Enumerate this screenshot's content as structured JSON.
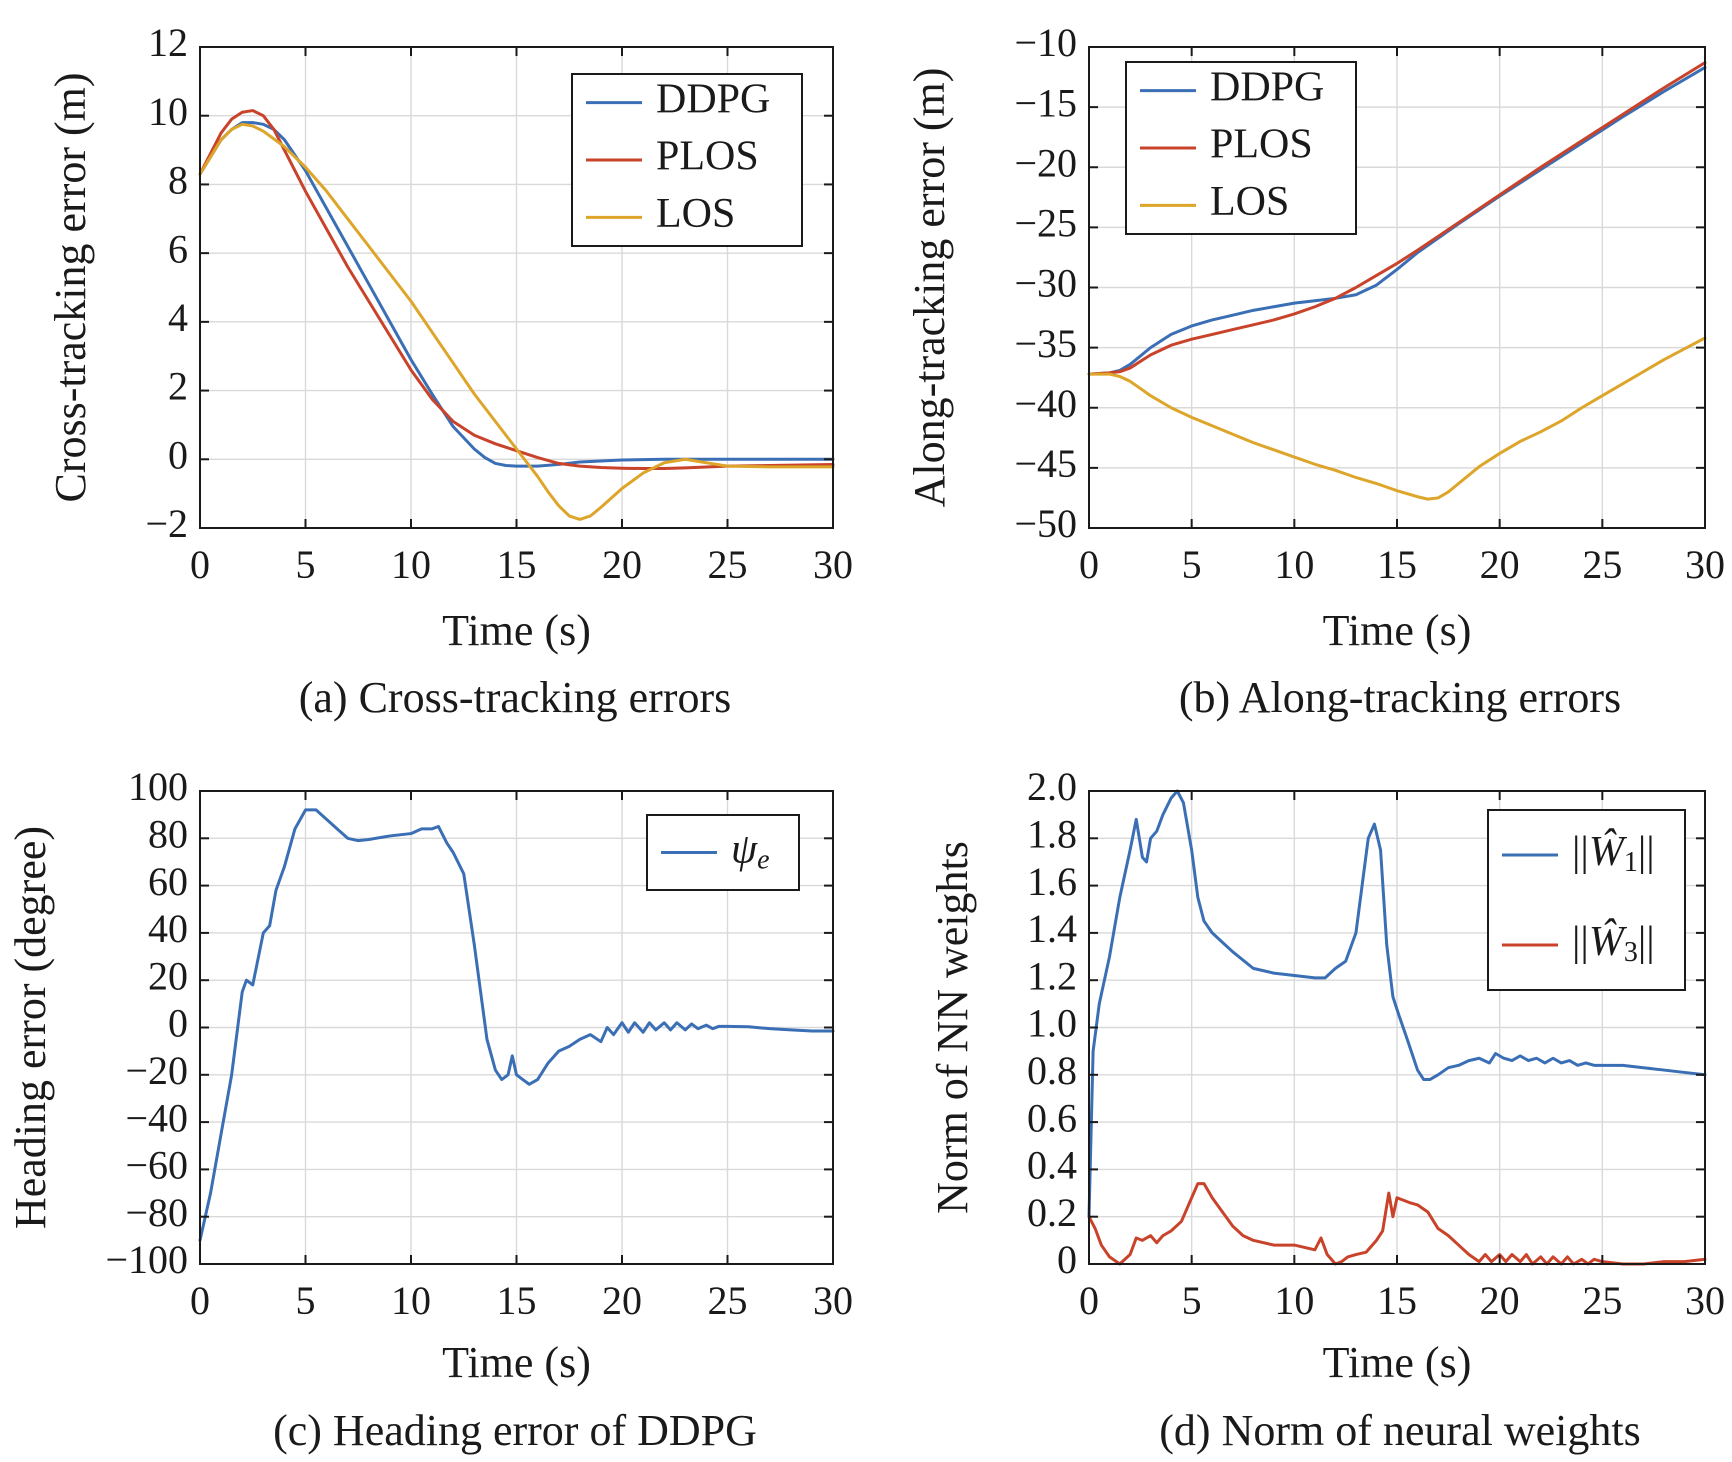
{
  "colors": {
    "blue": "#3a6fb5",
    "red": "#c9432b",
    "yellow": "#dda52a",
    "grid": "#d9d9d9",
    "axis": "#1a1a1a"
  },
  "chart_data": [
    {
      "id": "a",
      "type": "line",
      "caption": "(a) Cross-tracking errors",
      "xlabel": "Time (s)",
      "ylabel": "Cross-tracking error (m)",
      "xlim": [
        0,
        30
      ],
      "ylim": [
        -2,
        12
      ],
      "xticks": [
        0,
        5,
        10,
        15,
        20,
        25,
        30
      ],
      "xtick_labels": [
        "0",
        "5",
        "10",
        "15",
        "20",
        "25",
        "30"
      ],
      "yticks": [
        -2,
        0,
        2,
        4,
        6,
        8,
        10,
        12
      ],
      "ytick_labels": [
        "−2",
        "0",
        "2",
        "4",
        "6",
        "8",
        "10",
        "12"
      ],
      "grid": true,
      "legend_position": "top-right",
      "series": [
        {
          "name": "DDPG",
          "color": "#3a6fb5",
          "x": [
            0,
            0.5,
            1,
            1.5,
            2,
            2.5,
            3,
            3.5,
            4,
            5,
            6,
            7,
            8,
            9,
            10,
            11,
            12,
            13,
            13.5,
            14,
            14.5,
            15,
            16,
            17,
            18,
            20,
            22,
            25,
            30
          ],
          "y": [
            8.3,
            8.8,
            9.3,
            9.6,
            9.8,
            9.8,
            9.75,
            9.6,
            9.3,
            8.4,
            7.3,
            6.2,
            5.1,
            4.0,
            2.9,
            1.9,
            0.95,
            0.3,
            0.05,
            -0.12,
            -0.18,
            -0.2,
            -0.2,
            -0.15,
            -0.08,
            -0.02,
            0.0,
            0.0,
            0.0
          ]
        },
        {
          "name": "PLOS",
          "color": "#c9432b",
          "x": [
            0,
            0.5,
            1,
            1.5,
            2,
            2.5,
            3,
            3.5,
            4,
            5,
            6,
            7,
            8,
            9,
            10,
            11,
            12,
            13,
            14,
            15,
            16,
            17,
            18,
            19,
            20,
            21,
            22,
            23,
            25,
            27,
            30
          ],
          "y": [
            8.3,
            8.9,
            9.5,
            9.9,
            10.1,
            10.15,
            10.0,
            9.6,
            9.0,
            7.8,
            6.7,
            5.6,
            4.6,
            3.6,
            2.6,
            1.75,
            1.1,
            0.7,
            0.45,
            0.25,
            0.05,
            -0.12,
            -0.2,
            -0.24,
            -0.26,
            -0.27,
            -0.27,
            -0.25,
            -0.2,
            -0.18,
            -0.15
          ]
        },
        {
          "name": "LOS",
          "color": "#dda52a",
          "x": [
            0,
            0.5,
            1,
            1.5,
            2,
            2.5,
            3,
            4,
            5,
            6,
            7,
            8,
            9,
            10,
            11,
            12,
            13,
            14,
            15,
            16,
            16.5,
            17,
            17.5,
            18,
            18.5,
            19,
            20,
            21,
            22,
            23,
            24,
            25,
            27,
            30
          ],
          "y": [
            8.3,
            8.8,
            9.3,
            9.6,
            9.75,
            9.7,
            9.55,
            9.1,
            8.5,
            7.8,
            7.0,
            6.2,
            5.4,
            4.6,
            3.7,
            2.8,
            1.9,
            1.1,
            0.3,
            -0.5,
            -0.95,
            -1.35,
            -1.65,
            -1.75,
            -1.65,
            -1.4,
            -0.85,
            -0.4,
            -0.1,
            0.0,
            -0.1,
            -0.2,
            -0.22,
            -0.22
          ]
        }
      ]
    },
    {
      "id": "b",
      "type": "line",
      "caption": "(b) Along-tracking errors",
      "xlabel": "Time (s)",
      "ylabel": "Along-tracking error (m)",
      "xlim": [
        0,
        30
      ],
      "ylim": [
        -50,
        -10
      ],
      "xticks": [
        0,
        5,
        10,
        15,
        20,
        25,
        30
      ],
      "xtick_labels": [
        "0",
        "5",
        "10",
        "15",
        "20",
        "25",
        "30"
      ],
      "yticks": [
        -50,
        -45,
        -40,
        -35,
        -30,
        -25,
        -20,
        -15,
        -10
      ],
      "ytick_labels": [
        "−50",
        "−45",
        "−40",
        "−35",
        "−30",
        "−25",
        "−20",
        "−15",
        "−10"
      ],
      "grid": true,
      "legend_position": "top-left",
      "series": [
        {
          "name": "DDPG",
          "color": "#3a6fb5",
          "x": [
            0,
            1,
            1.5,
            2,
            3,
            4,
            5,
            6,
            7,
            8,
            9,
            10,
            11,
            12,
            13,
            14,
            15,
            16,
            18,
            20,
            22,
            24,
            26,
            28,
            30
          ],
          "y": [
            -37.2,
            -37.1,
            -36.9,
            -36.4,
            -35.0,
            -33.9,
            -33.2,
            -32.7,
            -32.3,
            -31.9,
            -31.6,
            -31.3,
            -31.1,
            -30.9,
            -30.6,
            -29.8,
            -28.5,
            -27.1,
            -24.7,
            -22.4,
            -20.2,
            -18.0,
            -15.8,
            -13.7,
            -11.7
          ]
        },
        {
          "name": "PLOS",
          "color": "#c9432b",
          "x": [
            0,
            1,
            1.5,
            2,
            3,
            4,
            5,
            6,
            7,
            8,
            9,
            10,
            11,
            12,
            13,
            14,
            15,
            16,
            18,
            20,
            22,
            24,
            26,
            28,
            30
          ],
          "y": [
            -37.2,
            -37.1,
            -37.0,
            -36.7,
            -35.6,
            -34.8,
            -34.3,
            -33.9,
            -33.5,
            -33.1,
            -32.7,
            -32.2,
            -31.6,
            -30.9,
            -30.0,
            -29.0,
            -28.0,
            -26.9,
            -24.6,
            -22.3,
            -20.0,
            -17.8,
            -15.6,
            -13.4,
            -11.3
          ]
        },
        {
          "name": "LOS",
          "color": "#dda52a",
          "x": [
            0,
            1,
            1.5,
            2,
            3,
            4,
            5,
            6,
            7,
            8,
            9,
            10,
            11,
            12,
            13,
            14,
            15,
            16,
            16.5,
            17,
            17.5,
            18,
            19,
            20,
            21,
            22,
            23,
            24,
            25,
            26,
            27,
            28,
            29,
            30
          ],
          "y": [
            -37.2,
            -37.2,
            -37.4,
            -37.8,
            -39.0,
            -40.0,
            -40.8,
            -41.5,
            -42.2,
            -42.9,
            -43.5,
            -44.1,
            -44.7,
            -45.2,
            -45.8,
            -46.3,
            -46.9,
            -47.4,
            -47.6,
            -47.5,
            -47.0,
            -46.3,
            -44.9,
            -43.8,
            -42.8,
            -42.0,
            -41.1,
            -40.0,
            -39.0,
            -38.0,
            -37.0,
            -36.0,
            -35.1,
            -34.2
          ]
        }
      ]
    },
    {
      "id": "c",
      "type": "line",
      "caption": "(c) Heading error of DDPG",
      "xlabel": "Time (s)",
      "ylabel": "Heading error (degree)",
      "xlim": [
        0,
        30
      ],
      "ylim": [
        -100,
        100
      ],
      "xticks": [
        0,
        5,
        10,
        15,
        20,
        25,
        30
      ],
      "xtick_labels": [
        "0",
        "5",
        "10",
        "15",
        "20",
        "25",
        "30"
      ],
      "yticks": [
        -100,
        -80,
        -60,
        -40,
        -20,
        0,
        20,
        40,
        60,
        80,
        100
      ],
      "ytick_labels": [
        "−100",
        "−80",
        "−60",
        "−40",
        "−20",
        "0",
        "20",
        "40",
        "60",
        "80",
        "100"
      ],
      "grid": true,
      "legend_position": "top-right",
      "series": [
        {
          "name": "ψe",
          "color": "#3a6fb5",
          "x": [
            0,
            0.5,
            1,
            1.5,
            2,
            2.2,
            2.5,
            3,
            3.3,
            3.6,
            4,
            4.5,
            5,
            5.5,
            6,
            6.5,
            7,
            7.5,
            8,
            9,
            10,
            10.5,
            11,
            11.3,
            11.7,
            12,
            12.5,
            13,
            13.3,
            13.6,
            14,
            14.3,
            14.6,
            14.8,
            15,
            15.3,
            15.6,
            16,
            16.5,
            17,
            17.5,
            18,
            18.5,
            19,
            19.3,
            19.6,
            20,
            20.3,
            20.6,
            21,
            21.3,
            21.6,
            22,
            22.3,
            22.6,
            23,
            23.3,
            23.6,
            24,
            24.3,
            24.6,
            25,
            26,
            27,
            28,
            29,
            30
          ],
          "y": [
            -90,
            -70,
            -45,
            -20,
            15,
            20,
            18,
            40,
            43,
            58,
            68,
            84,
            92,
            92,
            88,
            84,
            80,
            79,
            79.5,
            81,
            82,
            84,
            84,
            85,
            78,
            74,
            65,
            35,
            15,
            -5,
            -18,
            -22,
            -20,
            -12,
            -20,
            -22,
            -24,
            -22,
            -15,
            -10,
            -8,
            -5,
            -3,
            -6,
            0,
            -3,
            2,
            -2,
            2,
            -2,
            2,
            -1,
            2,
            -1,
            2,
            -1,
            1.5,
            -0.5,
            1,
            -0.5,
            0.5,
            0.5,
            0.3,
            -0.5,
            -1,
            -1.5,
            -1.5
          ]
        }
      ]
    },
    {
      "id": "d",
      "type": "line",
      "caption": "(d) Norm of neural weights",
      "xlabel": "Time (s)",
      "ylabel": "Norm of NN weights",
      "xlim": [
        0,
        30
      ],
      "ylim": [
        0,
        2.0
      ],
      "xticks": [
        0,
        5,
        10,
        15,
        20,
        25,
        30
      ],
      "xtick_labels": [
        "0",
        "5",
        "10",
        "15",
        "20",
        "25",
        "30"
      ],
      "yticks": [
        0,
        0.2,
        0.4,
        0.6,
        0.8,
        1.0,
        1.2,
        1.4,
        1.6,
        1.8,
        2.0
      ],
      "ytick_labels": [
        "0",
        "0.2",
        "0.4",
        "0.6",
        "0.8",
        "1.0",
        "1.2",
        "1.4",
        "1.6",
        "1.8",
        "2.0"
      ],
      "grid": true,
      "legend_position": "top-right",
      "series": [
        {
          "name": "||Ŵ1||",
          "color": "#3a6fb5",
          "x": [
            0,
            0.2,
            0.5,
            1,
            1.5,
            2,
            2.3,
            2.6,
            2.8,
            3.0,
            3.3,
            3.6,
            4,
            4.3,
            4.6,
            5,
            5.3,
            5.6,
            6,
            6.5,
            7,
            8,
            9,
            10,
            11,
            11.5,
            12,
            12.5,
            13,
            13.3,
            13.6,
            13.9,
            14.2,
            14.5,
            14.8,
            15.1,
            15.5,
            16,
            16.3,
            16.6,
            17,
            17.5,
            18,
            18.5,
            19,
            19.5,
            19.8,
            20.2,
            20.6,
            21,
            21.4,
            21.8,
            22.2,
            22.6,
            23,
            23.4,
            23.8,
            24.2,
            24.6,
            25,
            26,
            27,
            28,
            29,
            30
          ],
          "y": [
            0.2,
            0.9,
            1.1,
            1.3,
            1.55,
            1.75,
            1.88,
            1.72,
            1.7,
            1.8,
            1.83,
            1.9,
            1.97,
            2.0,
            1.95,
            1.75,
            1.55,
            1.45,
            1.4,
            1.36,
            1.32,
            1.25,
            1.23,
            1.22,
            1.21,
            1.21,
            1.25,
            1.28,
            1.4,
            1.6,
            1.8,
            1.86,
            1.75,
            1.35,
            1.13,
            1.05,
            0.95,
            0.82,
            0.78,
            0.78,
            0.8,
            0.83,
            0.84,
            0.86,
            0.87,
            0.85,
            0.89,
            0.87,
            0.86,
            0.88,
            0.86,
            0.87,
            0.85,
            0.87,
            0.85,
            0.86,
            0.84,
            0.85,
            0.84,
            0.84,
            0.84,
            0.83,
            0.82,
            0.81,
            0.8
          ]
        },
        {
          "name": "||Ŵ3||",
          "color": "#c9432b",
          "x": [
            0,
            0.3,
            0.6,
            1,
            1.5,
            2,
            2.3,
            2.6,
            3,
            3.3,
            3.6,
            4,
            4.5,
            5,
            5.3,
            5.6,
            6,
            6.5,
            7,
            7.5,
            8,
            9,
            10,
            11,
            11.3,
            11.6,
            12,
            12.3,
            12.6,
            13,
            13.5,
            14,
            14.3,
            14.6,
            14.8,
            15.0,
            15.3,
            15.6,
            16,
            16.5,
            17,
            17.5,
            18,
            18.5,
            19,
            19.3,
            19.6,
            20,
            20.3,
            20.6,
            21,
            21.3,
            21.6,
            22,
            22.3,
            22.6,
            23,
            23.3,
            23.6,
            24,
            24.3,
            24.6,
            25,
            26,
            27,
            28,
            29,
            30
          ],
          "y": [
            0.2,
            0.15,
            0.08,
            0.03,
            0.0,
            0.04,
            0.11,
            0.1,
            0.12,
            0.09,
            0.12,
            0.14,
            0.18,
            0.28,
            0.34,
            0.34,
            0.28,
            0.22,
            0.16,
            0.12,
            0.1,
            0.08,
            0.08,
            0.06,
            0.11,
            0.04,
            0.0,
            0.01,
            0.03,
            0.04,
            0.05,
            0.1,
            0.14,
            0.3,
            0.2,
            0.28,
            0.27,
            0.26,
            0.25,
            0.22,
            0.15,
            0.12,
            0.08,
            0.04,
            0.01,
            0.04,
            0.01,
            0.04,
            0.01,
            0.04,
            0.01,
            0.04,
            0.0,
            0.03,
            0.0,
            0.03,
            0.0,
            0.03,
            0.0,
            0.02,
            0.0,
            0.02,
            0.01,
            0.0,
            0.0,
            0.01,
            0.01,
            0.02
          ]
        }
      ]
    }
  ]
}
